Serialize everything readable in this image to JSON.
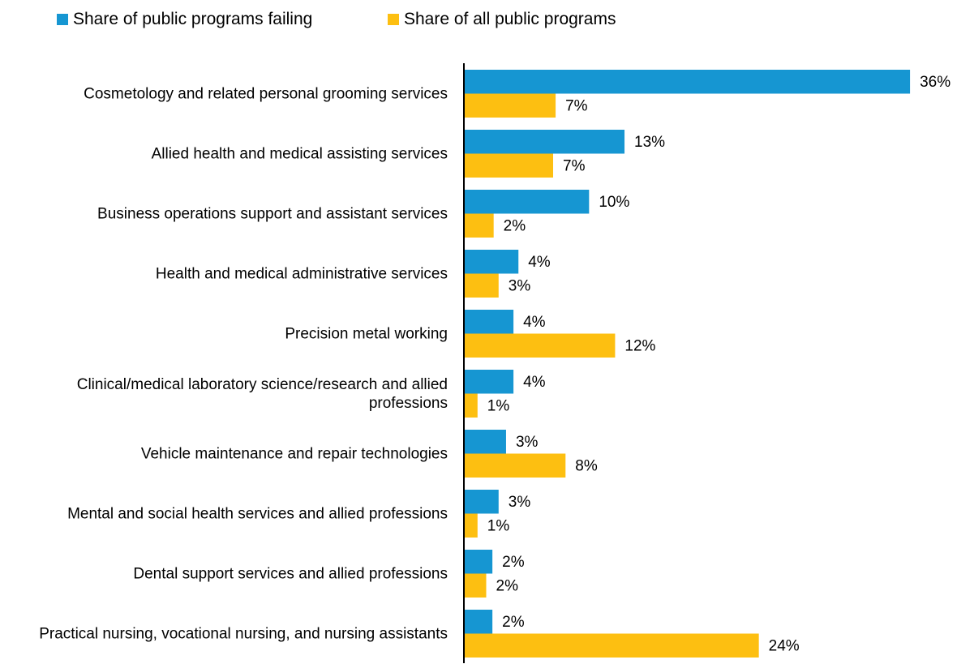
{
  "chart_data": {
    "type": "bar",
    "orientation": "horizontal",
    "categories": [
      "Cosmetology and related personal grooming services",
      "Allied health and medical assisting services",
      "Business operations support and assistant services",
      "Health and medical administrative services",
      "Precision metal working",
      "Clinical/medical laboratory science/research and allied professions",
      "Vehicle maintenance and repair technologies",
      "Mental and social health services and allied professions",
      "Dental support services and allied professions",
      "Practical nursing, vocational nursing, and nursing assistants"
    ],
    "series": [
      {
        "name": "Share of public programs failing",
        "color": "#1696d2",
        "values": [
          36.0,
          12.96,
          10.1,
          4.4,
          4.0,
          4.0,
          3.4,
          2.8,
          2.3,
          2.3
        ],
        "value_labels": [
          "36%",
          "13%",
          "10%",
          "4%",
          "4%",
          "4%",
          "3%",
          "3%",
          "2%",
          "2%"
        ]
      },
      {
        "name": "Share of all public programs",
        "color": "#fdbf11",
        "values": [
          7.4,
          7.2,
          2.4,
          2.8,
          12.2,
          1.1,
          8.2,
          1.1,
          1.8,
          23.8
        ],
        "value_labels": [
          "7%",
          "7%",
          "2%",
          "3%",
          "12%",
          "1%",
          "8%",
          "1%",
          "2%",
          "24%"
        ]
      }
    ],
    "legend": "top-left"
  }
}
